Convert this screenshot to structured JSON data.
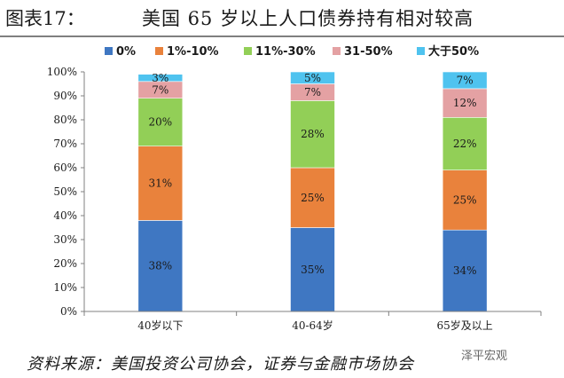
{
  "figure": {
    "label": "图表17：",
    "title": "美国 65 岁以上人口债券持有相对较高",
    "source": "资料来源：美国投资公司协会，证券与金融市场协会",
    "watermark": "泽平宏观"
  },
  "chart_data": {
    "type": "bar",
    "stacked": true,
    "categories": [
      "40岁以下",
      "40-64岁",
      "65岁及以上"
    ],
    "series": [
      {
        "name": "0%",
        "color": "#3f77c2",
        "values": [
          38,
          35,
          34
        ]
      },
      {
        "name": "1%-10%",
        "color": "#e9823c",
        "values": [
          31,
          25,
          25
        ]
      },
      {
        "name": "11%-30%",
        "color": "#92cf57",
        "values": [
          20,
          28,
          22
        ]
      },
      {
        "name": "31-50%",
        "color": "#e4a1a3",
        "values": [
          7,
          7,
          12
        ]
      },
      {
        "name": "大于50%",
        "color": "#4fc3ef",
        "values": [
          3,
          5,
          7
        ]
      }
    ],
    "y_ticks": [
      "0%",
      "10%",
      "20%",
      "30%",
      "40%",
      "50%",
      "60%",
      "70%",
      "80%",
      "90%",
      "100%"
    ],
    "ylim": [
      0,
      100
    ],
    "value_suffix": "%",
    "legend_position": "top",
    "grid": false
  }
}
